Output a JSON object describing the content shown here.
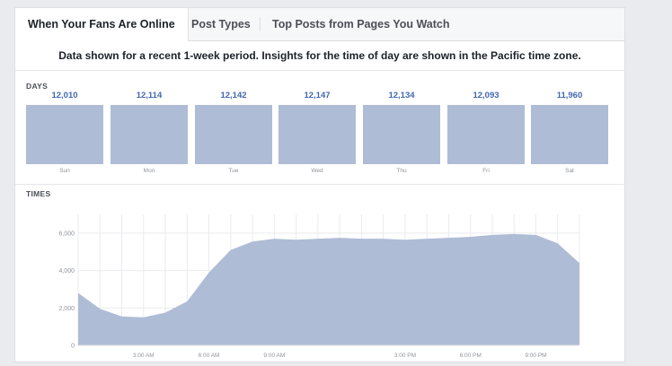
{
  "tabs": [
    {
      "label": "When Your Fans Are Online"
    },
    {
      "label": "Post Types"
    },
    {
      "label": "Top Posts from Pages You Watch"
    }
  ],
  "info_text": "Data shown for a recent 1-week period. Insights for the time of day are shown in the Pacific time zone.",
  "days_section": {
    "label": "DAYS",
    "days": [
      {
        "name": "Sun",
        "value": "12,010"
      },
      {
        "name": "Mon",
        "value": "12,114"
      },
      {
        "name": "Tue",
        "value": "12,142"
      },
      {
        "name": "Wed",
        "value": "12,147"
      },
      {
        "name": "Thu",
        "value": "12,134"
      },
      {
        "name": "Fri",
        "value": "12,093"
      },
      {
        "name": "Sat",
        "value": "11,960"
      }
    ]
  },
  "times_section": {
    "label": "TIMES"
  },
  "colors": {
    "bar": "#afbcd6",
    "area": "#afbcd6",
    "accent": "#4267b2"
  },
  "chart_data": {
    "type": "area",
    "x": [
      0,
      1,
      2,
      3,
      4,
      5,
      6,
      7,
      8,
      9,
      10,
      11,
      12,
      13,
      14,
      15,
      16,
      17,
      18,
      19,
      20,
      21,
      22,
      23
    ],
    "values": [
      2800,
      1950,
      1550,
      1500,
      1750,
      2350,
      3900,
      5100,
      5550,
      5700,
      5650,
      5700,
      5750,
      5700,
      5700,
      5650,
      5700,
      5750,
      5800,
      5900,
      5950,
      5900,
      5450,
      4400
    ],
    "ylim": [
      0,
      7000
    ],
    "y_ticks": [
      0,
      2000,
      4000,
      6000
    ],
    "y_tick_labels": [
      "0",
      "2,000",
      "4,000",
      "6,000"
    ],
    "x_tick_labels": [
      {
        "label": "3:00 AM",
        "hour": 3
      },
      {
        "label": "6:00 AM",
        "hour": 6
      },
      {
        "label": "9:00 AM",
        "hour": 9
      },
      {
        "label": "3:00 PM",
        "hour": 15
      },
      {
        "label": "6:00 PM",
        "hour": 18
      },
      {
        "label": "9:00 PM",
        "hour": 21
      }
    ],
    "grid": true
  }
}
